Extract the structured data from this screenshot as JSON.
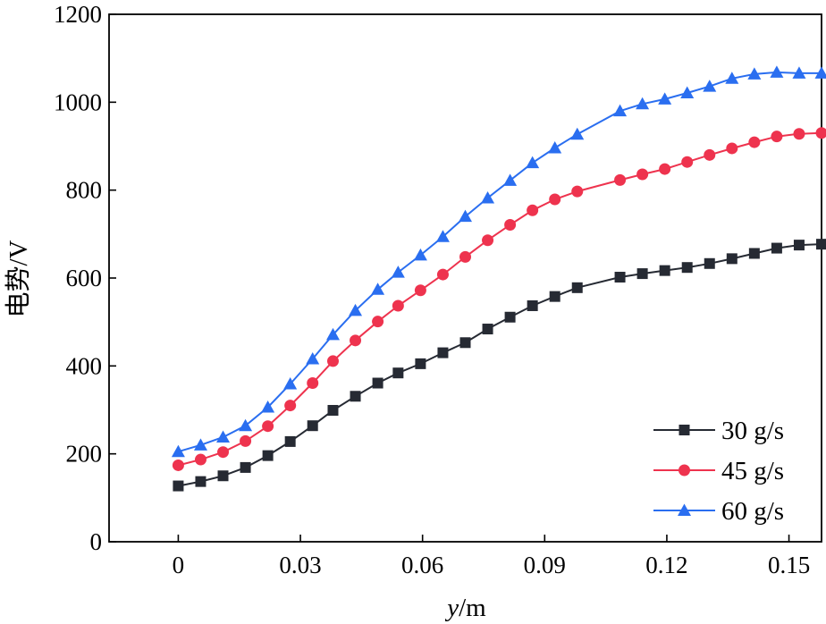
{
  "chart_data": {
    "type": "line",
    "xlabel": {
      "italic": "y",
      "rest": "/m"
    },
    "ylabel": "电势/V",
    "xlim": [
      -0.017,
      0.158
    ],
    "ylim": [
      0,
      1200
    ],
    "xticks": [
      0,
      0.03,
      0.06,
      0.09,
      0.12,
      0.15
    ],
    "xtick_labels": [
      "0",
      "0.03",
      "0.06",
      "0.09",
      "0.12",
      "0.15"
    ],
    "yticks": [
      0,
      200,
      400,
      600,
      800,
      1000,
      1200
    ],
    "ytick_labels": [
      "0",
      "200",
      "400",
      "600",
      "800",
      "1000",
      "1200"
    ],
    "grid": false,
    "legend_position": "bottom-right",
    "x": [
      0,
      0.0055,
      0.011,
      0.0165,
      0.022,
      0.0275,
      0.033,
      0.038,
      0.0435,
      0.049,
      0.054,
      0.0595,
      0.065,
      0.0705,
      0.076,
      0.0815,
      0.087,
      0.0925,
      0.098,
      0.1085,
      0.114,
      0.1195,
      0.125,
      0.1305,
      0.136,
      0.1415,
      0.147,
      0.1525,
      0.158
    ],
    "series": [
      {
        "name": "30 g/s",
        "color": "#262a33",
        "marker": "square",
        "values": [
          127,
          137,
          150,
          169,
          196,
          228,
          264,
          299,
          331,
          361,
          384,
          405,
          430,
          453,
          484,
          511,
          537,
          558,
          578,
          602,
          610,
          617,
          624,
          633,
          644,
          656,
          668,
          675,
          677
        ]
      },
      {
        "name": "45 g/s",
        "color": "#ee334e",
        "marker": "circle",
        "values": [
          174,
          187,
          204,
          229,
          263,
          310,
          361,
          411,
          458,
          501,
          537,
          572,
          608,
          648,
          686,
          721,
          754,
          779,
          797,
          823,
          836,
          848,
          864,
          880,
          895,
          909,
          922,
          928,
          930
        ]
      },
      {
        "name": "60 g/s",
        "color": "#2a6ef0",
        "marker": "triangle",
        "values": [
          205,
          220,
          238,
          264,
          306,
          359,
          416,
          471,
          526,
          574,
          613,
          652,
          694,
          740,
          782,
          822,
          862,
          896,
          927,
          980,
          996,
          1007,
          1021,
          1036,
          1054,
          1064,
          1068,
          1066,
          1066
        ]
      }
    ]
  }
}
